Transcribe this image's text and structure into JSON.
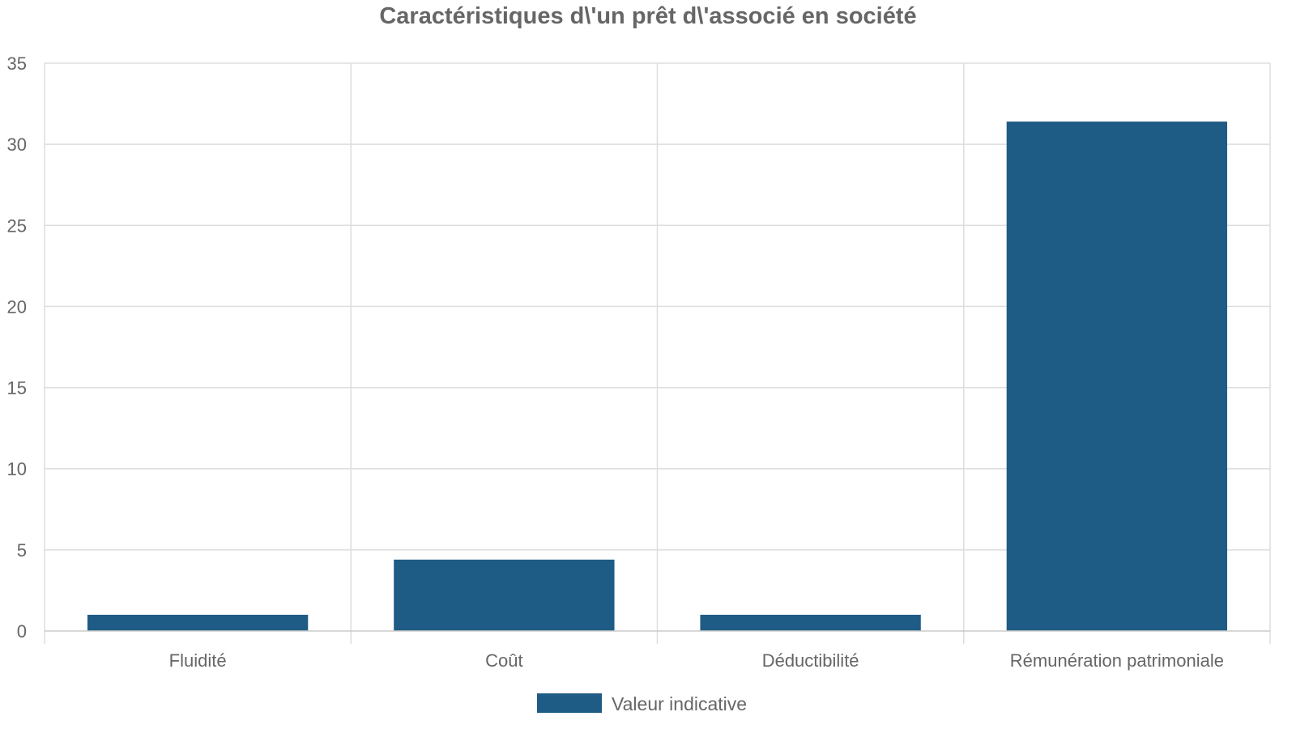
{
  "chart_data": {
    "type": "bar",
    "title": "Caractéristiques d\\'un prêt d\\'associé en société",
    "categories": [
      "Fluidité",
      "Coût",
      "Déductibilité",
      "Rémunération patrimoniale"
    ],
    "series": [
      {
        "name": "Valeur indicative",
        "values": [
          1,
          4.4,
          1,
          31.4
        ],
        "color": "#1f5c85"
      }
    ],
    "xlabel": "",
    "ylabel": "",
    "ylim": [
      0,
      35
    ],
    "yticks": [
      "0",
      "5",
      "10",
      "15",
      "20",
      "25",
      "30",
      "35"
    ],
    "grid": true,
    "legend_position": "bottom"
  }
}
